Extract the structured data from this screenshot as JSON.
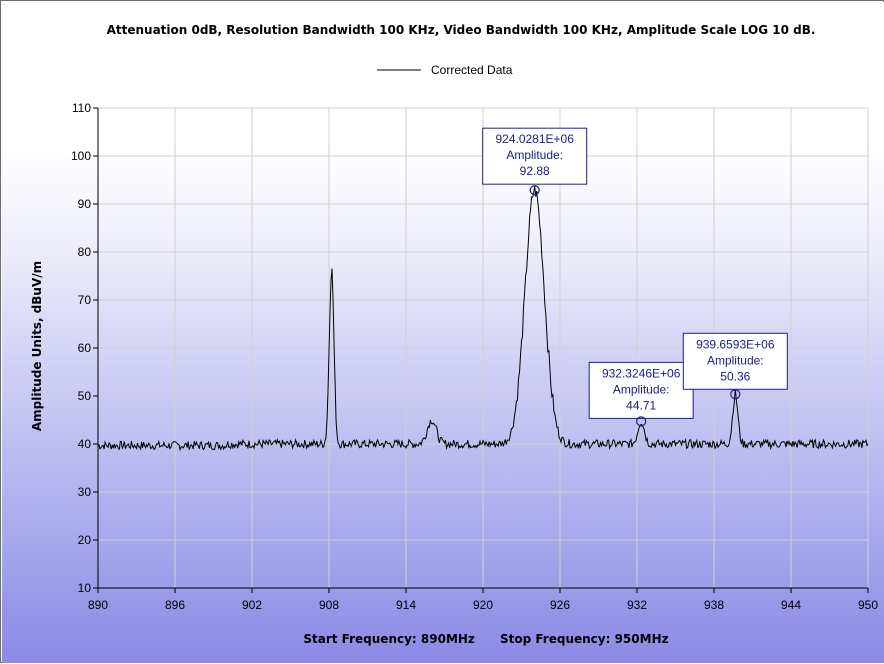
{
  "chart_data": {
    "type": "line",
    "title": "Attenuation 0dB, Resolution Bandwidth 100 KHz, Video Bandwidth 100 KHz, Amplitude Scale LOG 10 dB.",
    "legend": {
      "position": "top-center",
      "entries": [
        "Corrected Data"
      ]
    },
    "xlabel": "Start Frequency: 890MHz      Stop Frequency: 950MHz",
    "ylabel": "Amplitude Units, dBuV/m",
    "xlim": [
      890,
      950
    ],
    "ylim": [
      10,
      110
    ],
    "xticks": [
      890,
      896,
      902,
      908,
      914,
      920,
      926,
      932,
      938,
      944,
      950
    ],
    "yticks": [
      10,
      20,
      30,
      40,
      50,
      60,
      70,
      80,
      90,
      100,
      110
    ],
    "grid": true,
    "series": [
      {
        "name": "Corrected Data",
        "color": "#000000",
        "baseline": 40,
        "peaks": [
          {
            "x": 908.2,
            "y": 76.5,
            "width": 0.18
          },
          {
            "x": 916.0,
            "y": 45.0,
            "width": 0.35
          },
          {
            "x": 924.028,
            "y": 92.88,
            "width": 0.75
          },
          {
            "x": 932.3246,
            "y": 44.71,
            "width": 0.25
          },
          {
            "x": 939.6593,
            "y": 50.36,
            "width": 0.2
          }
        ]
      }
    ],
    "annotations": [
      {
        "x": 924.028,
        "y": 92.88,
        "lines": [
          "924.0281E+06",
          "Amplitude:",
          "92.88"
        ]
      },
      {
        "x": 932.3246,
        "y": 44.71,
        "lines": [
          "932.3246E+06",
          "Amplitude:",
          "44.71"
        ]
      },
      {
        "x": 939.6593,
        "y": 50.36,
        "lines": [
          "939.6593E+06",
          "Amplitude:",
          "50.36"
        ]
      }
    ],
    "colors": {
      "plot_gradient_top": "#ffffff",
      "plot_gradient_bottom": "#8a8ae6",
      "grid": "#d0d0d0",
      "annotation": "#1c1c8c"
    }
  }
}
